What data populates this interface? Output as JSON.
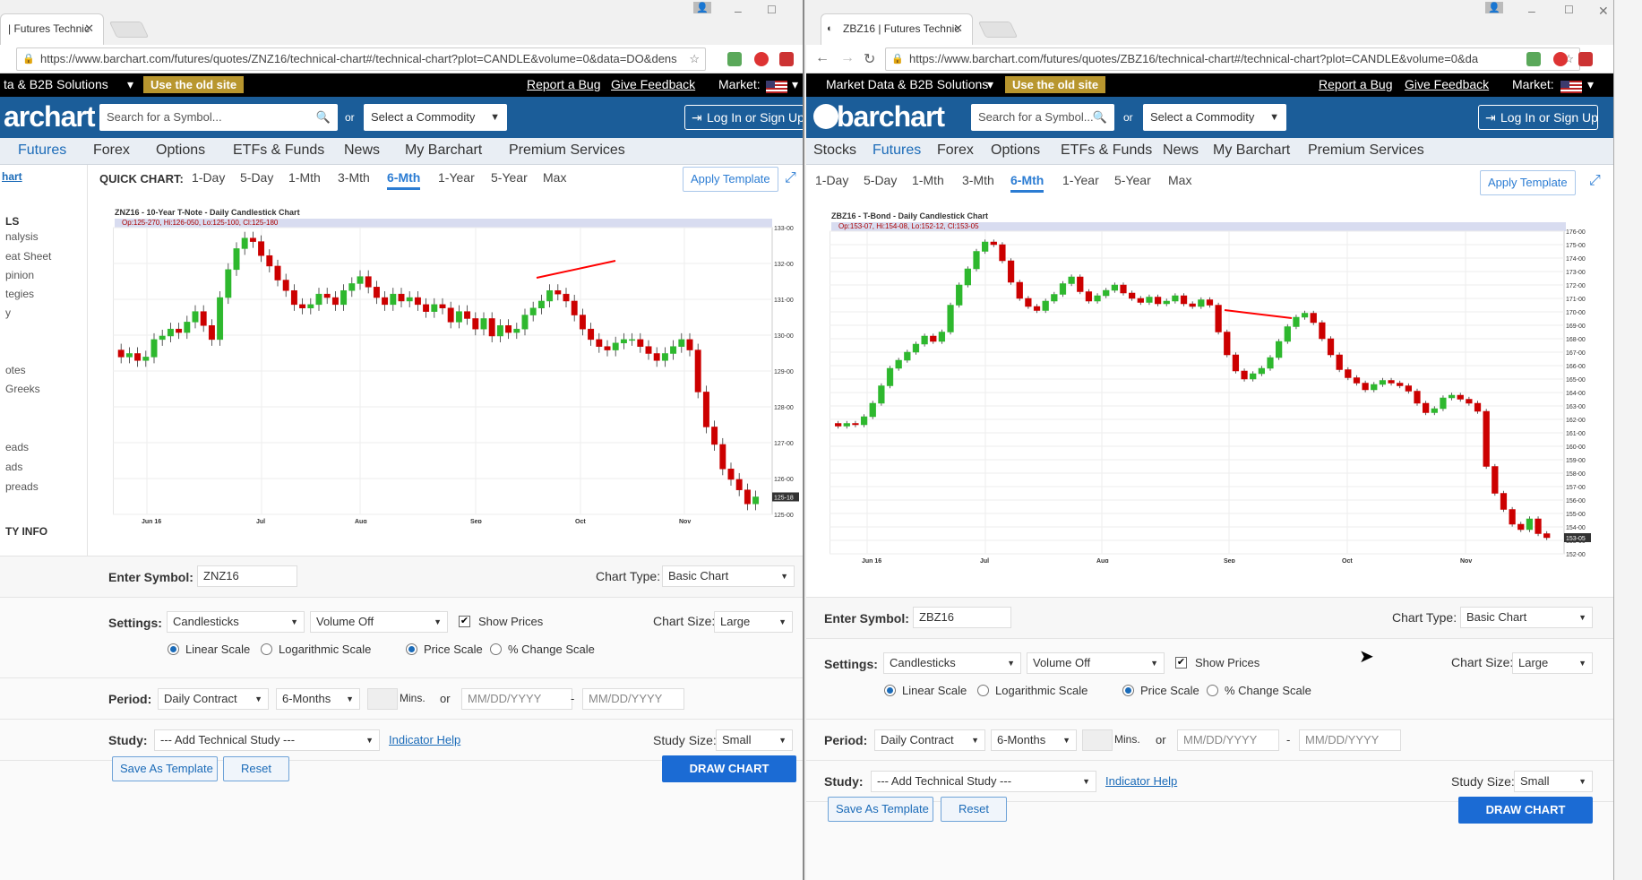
{
  "left": {
    "tab_title": "| Futures Technic",
    "url": "https://www.barchart.com/futures/quotes/ZNZ16/technical-chart#/technical-chart?plot=CANDLE&volume=0&data=DO&dens",
    "topbar": {
      "market_data": "ta & B2B Solutions",
      "old_site": "Use the old site",
      "report_bug": "Report a Bug",
      "feedback": "Give Feedback",
      "market": "Market:"
    },
    "logo": "archart",
    "search_placeholder": "Search for a Symbol...",
    "or": "or",
    "commodity": "Select a Commodity",
    "login": "Log In or Sign Up",
    "nav": [
      "Futures",
      "Forex",
      "Options",
      "ETFs & Funds",
      "News",
      "My Barchart",
      "Premium Services"
    ],
    "sidebar": [
      "hart",
      "LS",
      "nalysis",
      "eat Sheet",
      "pinion",
      "tegies",
      "y",
      "otes",
      "Greeks",
      "eads",
      "ads",
      "preads",
      "TY INFO"
    ],
    "quick_label": "QUICK CHART:",
    "periods": [
      "1-Day",
      "5-Day",
      "1-Mth",
      "3-Mth",
      "6-Mth",
      "1-Year",
      "5-Year",
      "Max"
    ],
    "active_period": "6-Mth",
    "apply_template": "Apply Template",
    "chart_title": "ZNZ16 - 10-Year T-Note - Daily Candlestick Chart",
    "chart_info": "Op:125-270, Hi:126-050, Lo:125-100, Cl:125-180",
    "controls": {
      "enter_symbol": "Enter Symbol:",
      "symbol": "ZNZ16",
      "chart_type_lbl": "Chart Type:",
      "chart_type": "Basic Chart",
      "settings": "Settings:",
      "plot": "Candlesticks",
      "volume": "Volume Off",
      "show_prices": "Show Prices",
      "chart_size_lbl": "Chart Size:",
      "chart_size": "Large",
      "linear": "Linear Scale",
      "log": "Logarithmic Scale",
      "price": "Price Scale",
      "pct": "% Change Scale",
      "period": "Period:",
      "contract": "Daily Contract",
      "months": "6-Months",
      "mins": "Mins.",
      "or": "or",
      "date1": "MM/DD/YYYY",
      "dash": "-",
      "date2": "MM/DD/YYYY",
      "study": "Study:",
      "add_study": "--- Add Technical Study ---",
      "indicator_help": "Indicator Help",
      "study_size_lbl": "Study Size:",
      "study_size": "Small",
      "save_template": "Save As Template",
      "reset": "Reset",
      "draw": "DRAW CHART"
    }
  },
  "right": {
    "tab_title": "ZBZ16 | Futures Technic",
    "url": "https://www.barchart.com/futures/quotes/ZBZ16/technical-chart#/technical-chart?plot=CANDLE&volume=0&da",
    "topbar": {
      "market_data": "Market Data & B2B Solutions",
      "old_site": "Use the old site",
      "report_bug": "Report a Bug",
      "feedback": "Give Feedback",
      "market": "Market:"
    },
    "logo": "barchart",
    "search_placeholder": "Search for a Symbol...",
    "or": "or",
    "commodity": "Select a Commodity",
    "login": "Log In or Sign Up",
    "nav": [
      "Stocks",
      "Futures",
      "Forex",
      "Options",
      "ETFs & Funds",
      "News",
      "My Barchart",
      "Premium Services"
    ],
    "periods": [
      "1-Day",
      "5-Day",
      "1-Mth",
      "3-Mth",
      "6-Mth",
      "1-Year",
      "5-Year",
      "Max"
    ],
    "active_period": "6-Mth",
    "apply_template": "Apply Template",
    "chart_title": "ZBZ16 - T-Bond - Daily Candlestick Chart",
    "chart_info": "Op:153-07, Hi:154-08, Lo:152-12, Cl:153-05",
    "controls": {
      "enter_symbol": "Enter Symbol:",
      "symbol": "ZBZ16",
      "chart_type_lbl": "Chart Type:",
      "chart_type": "Basic Chart",
      "settings": "Settings:",
      "plot": "Candlesticks",
      "volume": "Volume Off",
      "show_prices": "Show Prices",
      "chart_size_lbl": "Chart Size:",
      "chart_size": "Large",
      "linear": "Linear Scale",
      "log": "Logarithmic Scale",
      "price": "Price Scale",
      "pct": "% Change Scale",
      "period": "Period:",
      "contract": "Daily Contract",
      "months": "6-Months",
      "mins": "Mins.",
      "or": "or",
      "date1": "MM/DD/YYYY",
      "dash": "-",
      "date2": "MM/DD/YYYY",
      "study": "Study:",
      "add_study": "--- Add Technical Study ---",
      "indicator_help": "Indicator Help",
      "study_size_lbl": "Study Size:",
      "study_size": "Small",
      "save_template": "Save As Template",
      "reset": "Reset",
      "draw": "DRAW CHART"
    }
  },
  "colors": {
    "brand": "#1b5d99",
    "up": "#2eb82e",
    "down": "#cc0000",
    "trend": "#ff0000",
    "active": "#2b7cd3"
  },
  "chart_data": [
    {
      "type": "candlestick",
      "title": "ZNZ16 - 10-Year T-Note - Daily Candlestick Chart",
      "info": "Op:125-270, Hi:126-050, Lo:125-100, Cl:125-180",
      "x_ticks": [
        "Jun 16",
        "Jul",
        "Aug",
        "Sep",
        "Oct",
        "Nov"
      ],
      "y_ticks": [
        "125-00",
        "126-00",
        "127-00",
        "128-00",
        "129-00",
        "130-00",
        "131-00",
        "132-00",
        "133-00"
      ],
      "ylim": [
        125.0,
        133.2
      ],
      "last_price": "125-18",
      "closes": [
        129.5,
        129.6,
        129.4,
        129.5,
        130.0,
        130.1,
        130.3,
        130.2,
        130.5,
        130.8,
        130.4,
        130.0,
        131.2,
        132.0,
        132.6,
        132.9,
        132.8,
        132.4,
        132.1,
        131.7,
        131.4,
        131.0,
        130.9,
        131.0,
        131.3,
        131.2,
        131.0,
        131.4,
        131.6,
        131.8,
        131.5,
        131.2,
        131.0,
        131.3,
        131.1,
        131.2,
        131.0,
        130.8,
        131.0,
        130.9,
        130.5,
        130.8,
        130.6,
        130.3,
        130.6,
        130.1,
        130.4,
        130.2,
        130.3,
        130.7,
        130.9,
        131.1,
        131.4,
        131.3,
        131.1,
        130.7,
        130.3,
        130.0,
        129.8,
        129.7,
        129.9,
        130.0,
        130.0,
        129.8,
        129.6,
        129.4,
        129.6,
        129.8,
        130.0,
        129.7,
        128.5,
        127.5,
        127.0,
        126.3,
        126.0,
        125.7,
        125.3,
        125.5
      ],
      "trendline": [
        [
          599,
          310
        ],
        [
          687,
          291
        ]
      ]
    },
    {
      "type": "candlestick",
      "title": "ZBZ16 - T-Bond - Daily Candlestick Chart",
      "info": "Op:153-07, Hi:154-08, Lo:152-12, Cl:153-05",
      "x_ticks": [
        "Jun 16",
        "Jul",
        "Aug",
        "Sep",
        "Oct",
        "Nov"
      ],
      "y_ticks": [
        "152-00",
        "153-00",
        "154-00",
        "155-00",
        "156-00",
        "157-00",
        "158-00",
        "159-00",
        "160-00",
        "161-00",
        "162-00",
        "163-00",
        "164-00",
        "165-00",
        "166-00",
        "167-00",
        "168-00",
        "169-00",
        "170-00",
        "171-00",
        "172-00",
        "173-00",
        "174-00",
        "175-00",
        "176-00"
      ],
      "ylim": [
        152,
        176
      ],
      "last_price": "153-05",
      "closes": [
        161.5,
        161.7,
        161.6,
        162.2,
        163.2,
        164.5,
        165.8,
        166.4,
        167.0,
        167.6,
        168.2,
        167.8,
        168.5,
        170.5,
        172.0,
        173.2,
        174.5,
        175.2,
        175.0,
        173.8,
        172.2,
        171.0,
        170.4,
        170.1,
        170.8,
        171.3,
        172.1,
        172.6,
        171.5,
        170.8,
        171.2,
        171.6,
        172.0,
        171.4,
        171.0,
        170.7,
        171.1,
        170.6,
        170.8,
        171.2,
        170.6,
        170.4,
        170.9,
        170.5,
        168.5,
        166.8,
        165.6,
        165.0,
        165.4,
        165.8,
        166.6,
        167.8,
        168.9,
        169.6,
        169.9,
        169.2,
        168.0,
        166.8,
        165.7,
        165.1,
        164.7,
        164.2,
        164.6,
        164.9,
        164.7,
        164.5,
        164.1,
        163.2,
        162.5,
        162.8,
        163.6,
        163.8,
        163.5,
        163.2,
        162.6,
        158.5,
        156.5,
        155.3,
        154.2,
        153.8,
        154.6,
        153.5,
        153.2
      ],
      "trendline": [
        [
          1367,
          346
        ],
        [
          1442,
          355
        ]
      ]
    }
  ]
}
